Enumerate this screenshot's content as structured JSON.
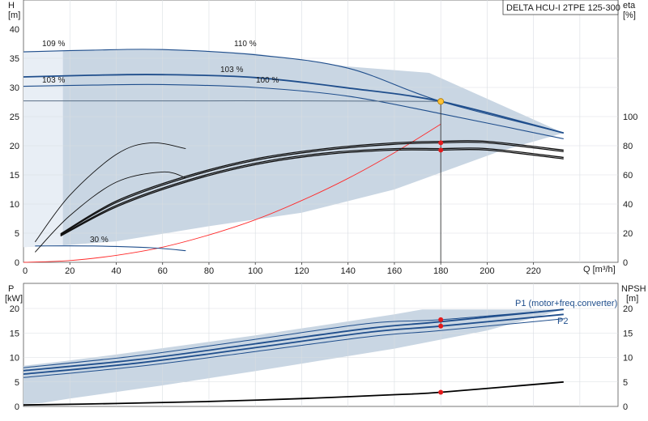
{
  "title": "DELTA HCU-I 2TPE 125-300",
  "colors": {
    "envelope": "#c9d6e3",
    "envelope_edge": "#e8eef5",
    "pump_curve": "#1f4e8c",
    "eff_curve": "#111111",
    "system": "#ff2a2a",
    "dutypoint": "#ffc233",
    "marker": "#e41a1c"
  },
  "chart_data": [
    {
      "type": "line",
      "name_panel": "head",
      "x_label": "Q [m³/h]",
      "y_label_left": "H",
      "y_unit_left": "[m]",
      "y_label_right": "eta",
      "y_unit_right": "[%]",
      "xlim": [
        0,
        250
      ],
      "ylim_left": [
        0,
        40
      ],
      "ylim_right": [
        0,
        160
      ],
      "x_ticks": [
        "20",
        "40",
        "60",
        "80",
        "100",
        "120",
        "140",
        "160",
        "180",
        "200",
        "220"
      ],
      "y_ticks_left": [
        "0",
        "5",
        "10",
        "15",
        "20",
        "25",
        "30",
        "35",
        "40"
      ],
      "y_ticks_right": [
        "0",
        "20",
        "40",
        "60",
        "80",
        "100"
      ],
      "curve_labels": [
        "109 %",
        "110 %",
        "103 %",
        "103 %",
        "100 %",
        "30 %"
      ],
      "envelope": {
        "x": [
          0,
          17,
          20,
          60,
          100,
          140,
          175,
          233,
          205,
          160,
          120,
          80,
          40,
          17,
          5,
          0
        ],
        "y": [
          36.2,
          36.3,
          36.4,
          36.6,
          35.8,
          33.6,
          32.5,
          22.2,
          19,
          12.5,
          8.5,
          6.2,
          3.6,
          2.9,
          2.7,
          2.6
        ]
      },
      "series": [
        {
          "x": [
            0,
            30,
            60,
            100,
            140,
            180,
            233
          ],
          "y": [
            36.1,
            36.4,
            36.5,
            35.6,
            33.3,
            27.6,
            22.2
          ]
        },
        {
          "x": [
            0,
            30,
            60,
            100,
            140,
            180,
            233
          ],
          "y": [
            31.8,
            32.1,
            32.2,
            31.7,
            29.9,
            27.6,
            22.2
          ]
        },
        {
          "x": [
            0,
            30,
            60,
            100,
            140,
            180,
            233
          ],
          "y": [
            30.2,
            30.4,
            30.5,
            30.0,
            28.5,
            25.5,
            21.2
          ]
        },
        {
          "x": [
            0,
            40,
            80,
            120,
            180
          ],
          "y": [
            27.7,
            27.7,
            27.7,
            27.7,
            27.6
          ]
        },
        {
          "x": [
            5,
            30,
            55,
            70
          ],
          "y": [
            2.8,
            2.8,
            2.5,
            2.0
          ]
        }
      ],
      "system_curve": {
        "x": [
          0,
          20,
          40,
          60,
          80,
          100,
          120,
          140,
          160,
          180
        ],
        "y": [
          0,
          0.3,
          1.2,
          2.6,
          4.7,
          7.3,
          10.6,
          14.4,
          18.8,
          23.7
        ]
      },
      "eff_series": [
        {
          "x": [
            16,
            40,
            70,
            100,
            130,
            160,
            180,
            200,
            233
          ],
          "y": [
            19,
            41,
            58,
            70,
            77,
            81,
            82,
            82,
            76
          ]
        },
        {
          "x": [
            16,
            40,
            70,
            100,
            130,
            160,
            180,
            200,
            233
          ],
          "y": [
            18,
            38,
            55,
            67,
            74,
            77,
            77,
            77,
            71
          ]
        },
        {
          "x": [
            16,
            40,
            70,
            100,
            130,
            160,
            180,
            200,
            233
          ],
          "y": [
            19.5,
            42,
            59,
            71,
            78,
            82,
            83,
            83,
            77
          ]
        },
        {
          "x": [
            16,
            40,
            70,
            100,
            130,
            160,
            180,
            200,
            233
          ],
          "y": [
            18.5,
            39,
            56,
            68,
            75,
            78,
            78,
            78,
            72
          ]
        },
        {
          "x": [
            5,
            20,
            40,
            55,
            70
          ],
          "y": [
            14,
            46,
            74,
            82,
            78
          ]
        },
        {
          "x": [
            5,
            20,
            40,
            60,
            70
          ],
          "y": [
            7,
            32,
            55,
            62,
            58
          ]
        }
      ],
      "duty_point": {
        "q": 180,
        "h": 27.6
      },
      "eff_markers": [
        82,
        77
      ]
    },
    {
      "type": "line",
      "name_panel": "power",
      "y_label_left": "P",
      "y_unit_left": "[kW]",
      "y_label_right": "NPSH",
      "y_unit_right": "[m]",
      "xlim": [
        0,
        250
      ],
      "ylim_left": [
        0,
        22
      ],
      "y_ticks_left": [
        "0",
        "5",
        "10",
        "15",
        "20"
      ],
      "y_ticks_right": [
        "0",
        "5",
        "10",
        "15",
        "20"
      ],
      "series_names": [
        "P1 (motor+freq.converter)",
        "P2"
      ],
      "envelope": {
        "x": [
          0,
          17,
          40,
          100,
          160,
          172,
          233,
          200,
          160,
          100,
          60,
          20,
          8,
          0
        ],
        "y": [
          8.3,
          9.2,
          10.6,
          14.5,
          18.8,
          19.8,
          19.8,
          15.5,
          11.8,
          7.2,
          4.3,
          1.6,
          0.7,
          0.5
        ]
      },
      "series": [
        {
          "x": [
            0,
            50,
            100,
            150,
            180,
            233
          ],
          "y": [
            7.9,
            10.4,
            13.7,
            17.0,
            17.7,
            19.8
          ]
        },
        {
          "x": [
            0,
            50,
            100,
            150,
            180,
            233
          ],
          "y": [
            7.3,
            9.6,
            12.8,
            16.0,
            17.3,
            19.8
          ]
        },
        {
          "x": [
            0,
            50,
            100,
            150,
            180,
            233
          ],
          "y": [
            6.6,
            8.9,
            12.0,
            15.2,
            16.4,
            18.8
          ]
        },
        {
          "x": [
            0,
            50,
            100,
            150,
            180,
            233
          ],
          "y": [
            5.9,
            8.2,
            11.2,
            14.3,
            15.5,
            17.9
          ]
        }
      ],
      "npsh": {
        "x": [
          0,
          40,
          80,
          120,
          160,
          180,
          233
        ],
        "y": [
          0.3,
          0.6,
          1.0,
          1.6,
          2.4,
          2.9,
          5.0
        ]
      },
      "markers_p": [
        17.7,
        16.4
      ],
      "marker_npsh": 2.9
    }
  ]
}
